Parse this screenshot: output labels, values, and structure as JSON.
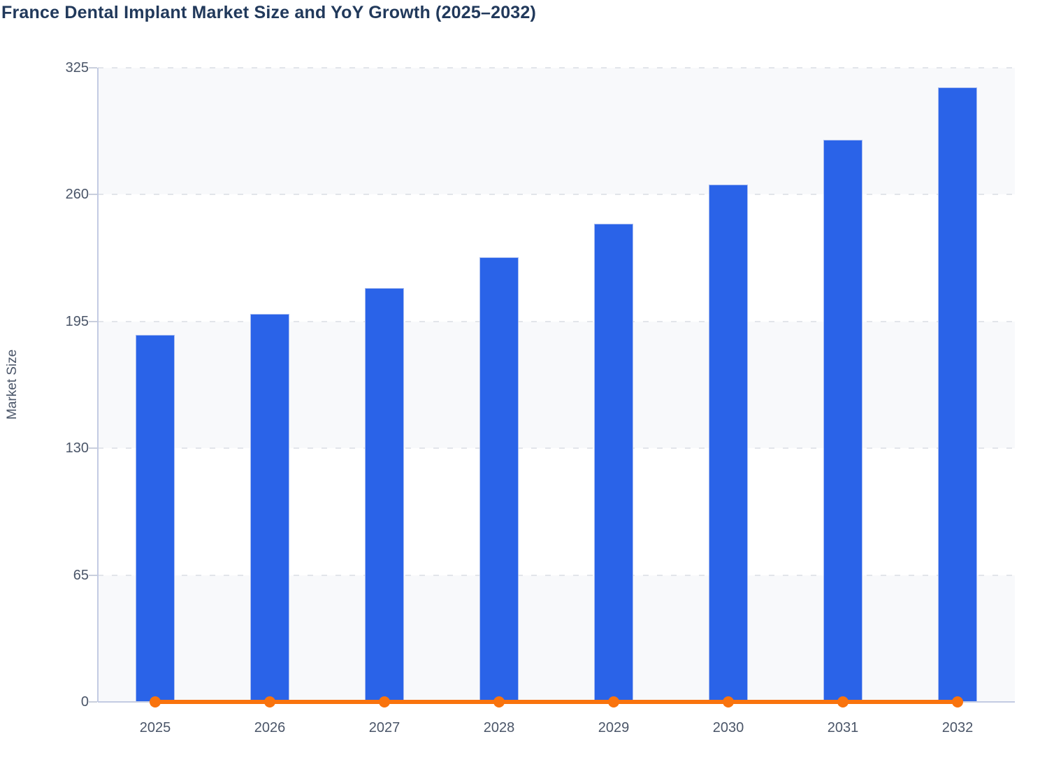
{
  "chart": {
    "title": "France Dental Implant Market Size and YoY Growth (2025–2032)",
    "y_axis_title": "Market Size"
  },
  "chart_data": {
    "type": "bar",
    "title": "France Dental Implant Market Size and YoY Growth (2025–2032)",
    "categories": [
      "2025",
      "2026",
      "2027",
      "2028",
      "2029",
      "2030",
      "2031",
      "2032"
    ],
    "series": [
      {
        "name": "Market Size",
        "type": "bar",
        "values": [
          188,
          199,
          212,
          228,
          245,
          265,
          288,
          315
        ]
      },
      {
        "name": "YoY Growth",
        "type": "line",
        "values": [
          0,
          0,
          0,
          0,
          0,
          0,
          0,
          0
        ]
      }
    ],
    "xlabel": "",
    "ylabel": "Market Size",
    "ylim": [
      0,
      325
    ],
    "yticks": [
      0,
      65,
      130,
      195,
      260,
      325
    ],
    "grid": "horizontal dashed",
    "legend_position": "none",
    "plot_background": "alternating horizontal bands"
  },
  "style": {
    "bar_color": "#2a63e8",
    "bar_border_color": "#a9bdf0",
    "line_color": "#f9730d",
    "title_color": "#21395b",
    "axis_text_color": "#4a5568",
    "band_color": "#f8f9fb",
    "gridline_color": "#e2e5ea",
    "axis_line_color": "#c3cbe3",
    "tick_color": "#c9cfdd"
  }
}
